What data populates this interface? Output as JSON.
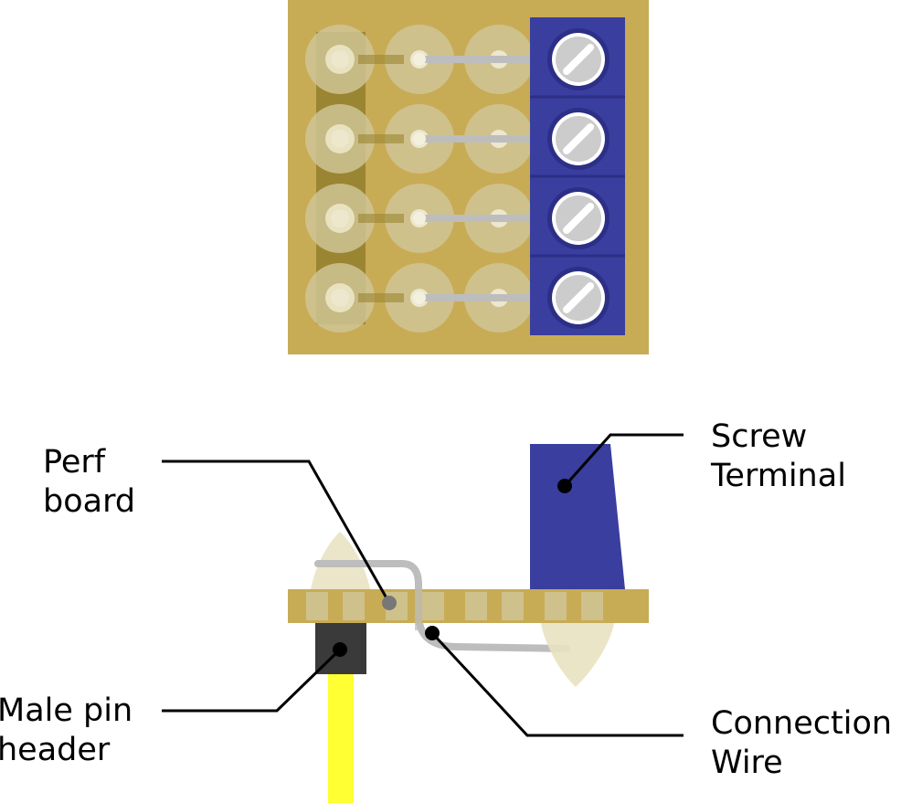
{
  "labels": {
    "perf_board": [
      "Perf",
      "board"
    ],
    "screw_terminal": [
      "Screw",
      "Terminal"
    ],
    "male_pin_header": [
      "Male pin",
      "header"
    ],
    "connection_wire": [
      "Connection",
      "Wire"
    ]
  },
  "colors": {
    "board": "#c8ab55",
    "pad": "#d1c79a",
    "pad_inner": "#e8e2c0",
    "pad_dot": "#ece7cd",
    "header_strip": "#9a8532",
    "terminal": "#3a3e9e",
    "terminal_dark": "#2c2f86",
    "screw": "#cccccc",
    "wire": "#bdbdbd",
    "header_black": "#3a3a3a",
    "pin_yellow": "#ffff33",
    "leader": "#000000"
  },
  "icons": {
    "top_view": "perf-board-top-view",
    "side_view": "assembly-side-view",
    "screw": "slotted-screw-icon"
  }
}
